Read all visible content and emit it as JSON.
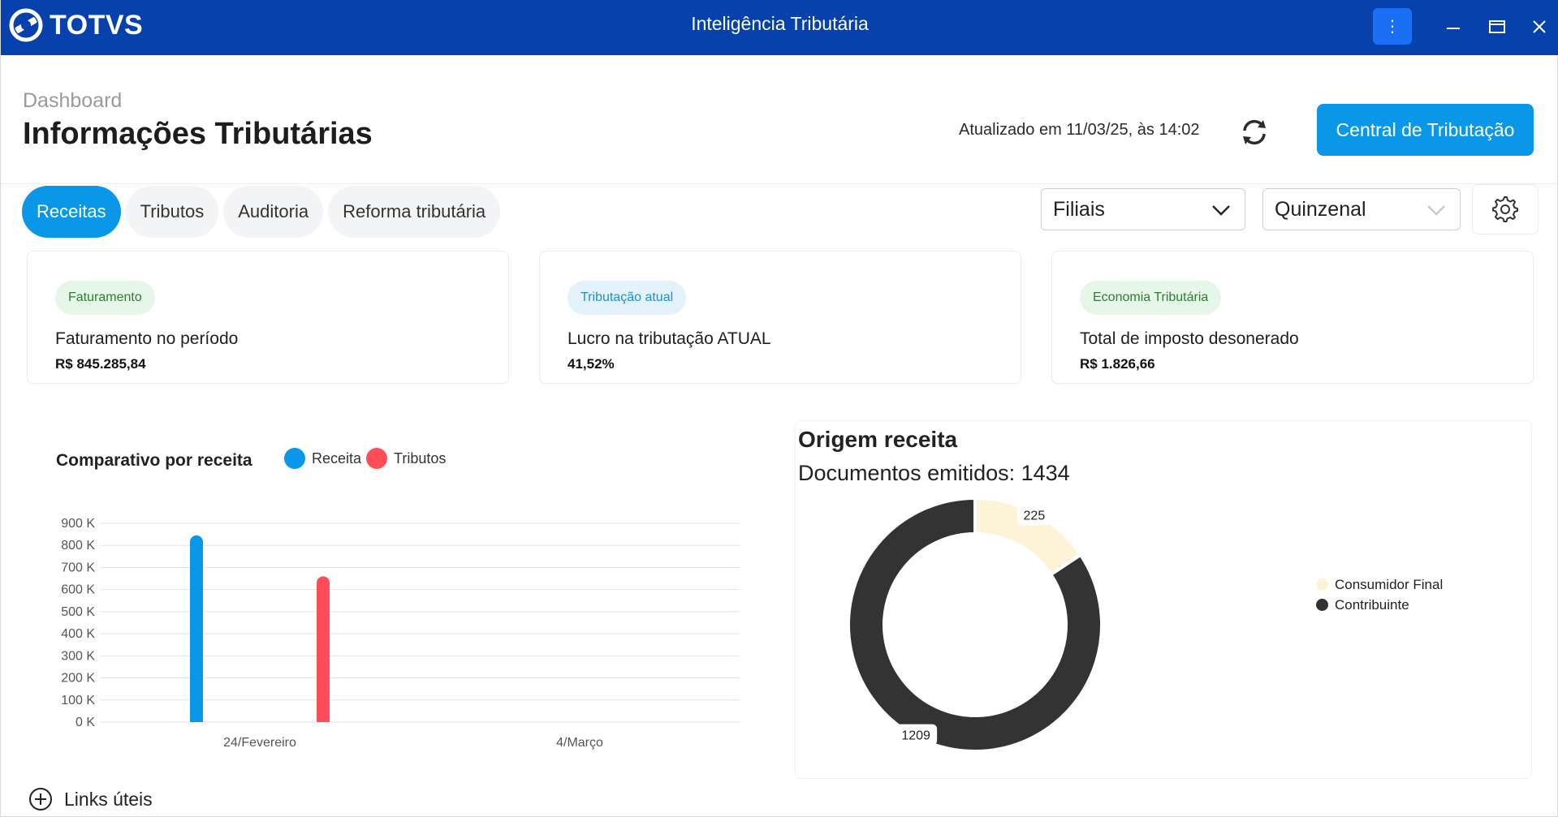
{
  "titlebar": {
    "logo_text": "TOTVS",
    "title": "Inteligência Tributária",
    "menu_glyph": "⋮",
    "colors": {
      "background": "#0741ac",
      "menu_button": "#1b6ff3"
    }
  },
  "header": {
    "breadcrumb": "Dashboard",
    "title": "Informações Tributárias",
    "updated_text": "Atualizado em 11/03/25, às 14:02",
    "primary_button": "Central de Tributação",
    "accent_color": "#0a97e8"
  },
  "tabs": [
    {
      "label": "Receitas",
      "active": true
    },
    {
      "label": "Tributos",
      "active": false
    },
    {
      "label": "Auditoria",
      "active": false
    },
    {
      "label": "Reforma tributária",
      "active": false
    }
  ],
  "filters": {
    "branches": {
      "value": "Filiais"
    },
    "period": {
      "value": "Quinzenal"
    }
  },
  "cards": [
    {
      "badge": "Faturamento",
      "badge_bg": "#e6f6e9",
      "badge_color": "#2e7d32",
      "label": "Faturamento no período",
      "value": "R$ 845.285,84"
    },
    {
      "badge": "Tributação atual",
      "badge_bg": "#e3f2fb",
      "badge_color": "#1e8fd0",
      "label": "Lucro na tributação ATUAL",
      "value": "41,52%"
    },
    {
      "badge": "Economia Tributária",
      "badge_bg": "#e6f6e9",
      "badge_color": "#2e7d32",
      "label": "Total de imposto desonerado",
      "value": "R$ 1.826,66"
    }
  ],
  "bar_chart": {
    "title": "Comparativo por receita",
    "legend": [
      {
        "name": "Receita",
        "color": "#0a97e8"
      },
      {
        "name": "Tributos",
        "color": "#ff4d5a"
      }
    ]
  },
  "donut": {
    "title": "Origem receita",
    "subtitle": "Documentos emitidos: 1434"
  },
  "links": {
    "label": "Links úteis"
  },
  "chart_data": [
    {
      "type": "bar",
      "title": "Comparativo por receita",
      "categories": [
        "24/Fevereiro",
        "4/Março"
      ],
      "series": [
        {
          "name": "Receita",
          "color": "#0a97e8",
          "values": [
            845285.84,
            0
          ]
        },
        {
          "name": "Tributos",
          "color": "#ff4d5a",
          "values": [
            660000,
            0
          ]
        }
      ],
      "ylim": [
        0,
        900000
      ],
      "yticks": [
        0,
        100000,
        200000,
        300000,
        400000,
        500000,
        600000,
        700000,
        800000,
        900000
      ],
      "ytick_labels": [
        "0 K",
        "100 K",
        "200 K",
        "300 K",
        "400 K",
        "500 K",
        "600 K",
        "700 K",
        "800 K",
        "900 K"
      ],
      "grid": true,
      "legend_position": "top"
    },
    {
      "type": "pie",
      "title": "Origem receita",
      "donut": true,
      "slices": [
        {
          "name": "Consumidor Final",
          "value": 225,
          "color": "#fdf3d6"
        },
        {
          "name": "Contribuinte",
          "value": 1209,
          "color": "#333333"
        }
      ],
      "legend_position": "right"
    }
  ]
}
